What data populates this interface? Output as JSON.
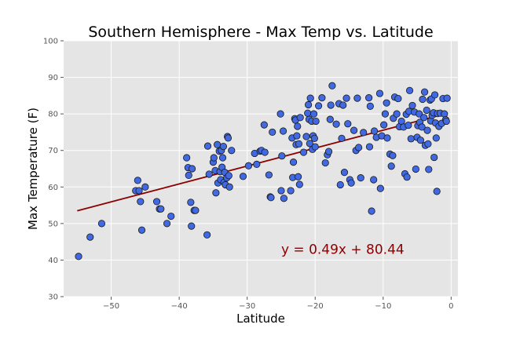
{
  "chart_data": {
    "type": "scatter",
    "title": "Southern Hemisphere - Max Temp vs. Latitude",
    "xlabel": "Latitude",
    "ylabel": "Max Temperature (F)",
    "xlim": [
      -57,
      1
    ],
    "ylim": [
      30,
      100
    ],
    "xticks": [
      -50,
      -40,
      -30,
      -20,
      -10,
      0
    ],
    "yticks": [
      30,
      40,
      50,
      60,
      70,
      80,
      90,
      100
    ],
    "xtick_labels": [
      "−50",
      "−40",
      "−30",
      "−20",
      "−10",
      "0"
    ],
    "ytick_labels": [
      "30",
      "40",
      "50",
      "60",
      "70",
      "80",
      "90",
      "100"
    ],
    "grid": true,
    "background": "#e5e5e5",
    "point_color": "#4169e1",
    "line_color": "#8b0000",
    "regression": {
      "slope": 0.49,
      "intercept": 80.44,
      "x_range": [
        -55,
        -0.5
      ],
      "equation_label": "y = 0.49x + 80.44",
      "label_x": -25.0,
      "label_y": 43
    },
    "points": [
      [
        -54.8,
        41.0
      ],
      [
        -53.1,
        46.3
      ],
      [
        -51.4,
        50.0
      ],
      [
        -46.4,
        59.0
      ],
      [
        -46.1,
        61.8
      ],
      [
        -45.9,
        59.0
      ],
      [
        -45.7,
        56.0
      ],
      [
        -45.5,
        48.2
      ],
      [
        -45.0,
        60.0
      ],
      [
        -43.3,
        56.0
      ],
      [
        -42.9,
        54.0
      ],
      [
        -42.7,
        54.0
      ],
      [
        -41.8,
        50.0
      ],
      [
        -41.2,
        52.0
      ],
      [
        -38.9,
        68.0
      ],
      [
        -38.7,
        65.3
      ],
      [
        -38.6,
        63.2
      ],
      [
        -38.3,
        55.8
      ],
      [
        -38.2,
        49.3
      ],
      [
        -38.1,
        65.0
      ],
      [
        -37.8,
        53.6
      ],
      [
        -37.6,
        53.6
      ],
      [
        -35.8,
        71.2
      ],
      [
        -35.6,
        63.5
      ],
      [
        -35.9,
        46.9
      ],
      [
        -35.0,
        66.8
      ],
      [
        -34.9,
        68.0
      ],
      [
        -34.7,
        64.5
      ],
      [
        -34.6,
        58.4
      ],
      [
        -34.4,
        71.6
      ],
      [
        -34.3,
        61.1
      ],
      [
        -34.1,
        69.8
      ],
      [
        -34.0,
        64.2
      ],
      [
        -33.9,
        62.0
      ],
      [
        -33.8,
        70.0
      ],
      [
        -33.7,
        65.4
      ],
      [
        -33.6,
        68.0
      ],
      [
        -33.5,
        71.1
      ],
      [
        -33.4,
        61.3
      ],
      [
        -33.3,
        64.0
      ],
      [
        -33.2,
        60.6
      ],
      [
        -33.0,
        62.5
      ],
      [
        -32.9,
        73.8
      ],
      [
        -32.8,
        73.4
      ],
      [
        -32.7,
        63.1
      ],
      [
        -32.6,
        60.0
      ],
      [
        -32.3,
        70.0
      ],
      [
        -30.6,
        62.9
      ],
      [
        -29.8,
        65.8
      ],
      [
        -28.9,
        69.2
      ],
      [
        -28.6,
        66.2
      ],
      [
        -28.1,
        69.8
      ],
      [
        -27.9,
        70.0
      ],
      [
        -27.5,
        77.0
      ],
      [
        -27.4,
        69.5
      ],
      [
        -26.8,
        63.3
      ],
      [
        -26.6,
        57.3
      ],
      [
        -26.5,
        57.1
      ],
      [
        -26.3,
        75.0
      ],
      [
        -25.1,
        80.0
      ],
      [
        -24.9,
        68.5
      ],
      [
        -24.7,
        75.3
      ],
      [
        -24.6,
        56.9
      ],
      [
        -25.0,
        59.0
      ],
      [
        -23.6,
        59.0
      ],
      [
        -23.4,
        73.4
      ],
      [
        -23.3,
        62.6
      ],
      [
        -23.2,
        66.8
      ],
      [
        -23.0,
        78.7
      ],
      [
        -22.9,
        78.3
      ],
      [
        -22.8,
        71.6
      ],
      [
        -22.7,
        74.0
      ],
      [
        -22.6,
        76.6
      ],
      [
        -22.5,
        62.8
      ],
      [
        -22.4,
        71.8
      ],
      [
        -22.3,
        60.7
      ],
      [
        -22.2,
        79.0
      ],
      [
        -21.7,
        69.5
      ],
      [
        -21.3,
        73.8
      ],
      [
        -21.1,
        80.2
      ],
      [
        -21.0,
        82.5
      ],
      [
        -20.9,
        78.5
      ],
      [
        -20.8,
        71.9
      ],
      [
        -20.7,
        84.3
      ],
      [
        -20.5,
        78.0
      ],
      [
        -20.4,
        70.3
      ],
      [
        -20.3,
        74.0
      ],
      [
        -20.2,
        80.0
      ],
      [
        -20.1,
        73.3
      ],
      [
        -20.0,
        71.0
      ],
      [
        -19.9,
        78.0
      ],
      [
        -19.5,
        82.2
      ],
      [
        -19.0,
        84.4
      ],
      [
        -18.5,
        66.6
      ],
      [
        -18.2,
        68.8
      ],
      [
        -18.0,
        69.7
      ],
      [
        -17.8,
        78.5
      ],
      [
        -17.7,
        82.4
      ],
      [
        -17.5,
        87.7
      ],
      [
        -16.9,
        77.2
      ],
      [
        -16.5,
        82.8
      ],
      [
        -16.3,
        60.6
      ],
      [
        -16.1,
        73.3
      ],
      [
        -15.9,
        82.4
      ],
      [
        -15.7,
        64.0
      ],
      [
        -15.4,
        84.3
      ],
      [
        -15.2,
        77.3
      ],
      [
        -14.9,
        62.0
      ],
      [
        -14.7,
        61.1
      ],
      [
        -14.3,
        75.5
      ],
      [
        -14.0,
        70.0
      ],
      [
        -13.8,
        84.3
      ],
      [
        -13.6,
        70.8
      ],
      [
        -13.3,
        62.5
      ],
      [
        -12.9,
        74.9
      ],
      [
        -12.1,
        84.4
      ],
      [
        -12.0,
        71.0
      ],
      [
        -11.9,
        82.1
      ],
      [
        -11.7,
        53.4
      ],
      [
        -11.4,
        62.0
      ],
      [
        -11.0,
        73.6
      ],
      [
        -11.3,
        75.3
      ],
      [
        -10.5,
        85.6
      ],
      [
        -10.4,
        59.6
      ],
      [
        -10.2,
        74.0
      ],
      [
        -9.9,
        77.0
      ],
      [
        -9.7,
        80.0
      ],
      [
        -9.5,
        83.0
      ],
      [
        -9.4,
        73.4
      ],
      [
        -9.0,
        69.0
      ],
      [
        -8.8,
        65.7
      ],
      [
        -8.6,
        68.6
      ],
      [
        -8.5,
        78.8
      ],
      [
        -8.3,
        84.6
      ],
      [
        -8.0,
        80.0
      ],
      [
        -7.8,
        84.2
      ],
      [
        -7.6,
        76.5
      ],
      [
        -7.3,
        78.0
      ],
      [
        -7.0,
        76.4
      ],
      [
        -6.8,
        63.6
      ],
      [
        -6.6,
        79.9
      ],
      [
        -6.5,
        62.7
      ],
      [
        -6.3,
        76.9
      ],
      [
        -6.2,
        80.7
      ],
      [
        -6.1,
        86.4
      ],
      [
        -5.9,
        73.2
      ],
      [
        -5.7,
        82.3
      ],
      [
        -5.4,
        80.5
      ],
      [
        -5.2,
        64.9
      ],
      [
        -5.0,
        73.6
      ],
      [
        -4.9,
        76.8
      ],
      [
        -4.7,
        80.0
      ],
      [
        -4.6,
        77.7
      ],
      [
        -4.5,
        72.8
      ],
      [
        -4.3,
        76.4
      ],
      [
        -4.2,
        84.0
      ],
      [
        -4.0,
        79.0
      ],
      [
        -3.9,
        86.0
      ],
      [
        -3.8,
        71.4
      ],
      [
        -3.6,
        81.0
      ],
      [
        -3.5,
        75.5
      ],
      [
        -3.4,
        71.8
      ],
      [
        -3.3,
        64.8
      ],
      [
        -3.1,
        83.8
      ],
      [
        -3.0,
        78.1
      ],
      [
        -2.9,
        84.1
      ],
      [
        -2.8,
        79.6
      ],
      [
        -2.6,
        80.3
      ],
      [
        -2.5,
        68.1
      ],
      [
        -2.4,
        85.2
      ],
      [
        -2.3,
        77.5
      ],
      [
        -2.2,
        73.4
      ],
      [
        -2.1,
        58.8
      ],
      [
        -2.0,
        80.1
      ],
      [
        -1.8,
        76.6
      ],
      [
        -1.6,
        80.2
      ],
      [
        -1.4,
        77.4
      ],
      [
        -1.2,
        84.2
      ],
      [
        -1.0,
        80.0
      ],
      [
        -0.8,
        78.4
      ],
      [
        -0.7,
        78.0
      ],
      [
        -0.6,
        84.3
      ]
    ]
  }
}
